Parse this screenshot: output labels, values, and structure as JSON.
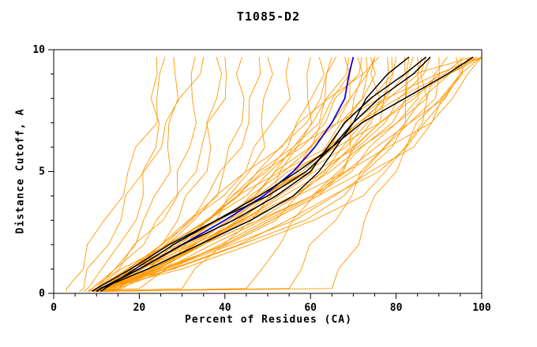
{
  "chart_data": {
    "type": "line",
    "title": "T1085-D2",
    "xlabel": "Percent of Residues (CA)",
    "ylabel": "Distance Cutoff, A",
    "xlim": [
      0,
      100
    ],
    "ylim": [
      0,
      10
    ],
    "x_major_ticks": [
      0,
      20,
      40,
      60,
      80,
      100
    ],
    "x_minor_step": 5,
    "y_major_ticks": [
      0,
      5,
      10
    ],
    "y_minor_step": 1,
    "grid": false,
    "legend": "none",
    "colors": {
      "ensemble": "#ff9800",
      "reference": "#000000",
      "highlight": "#1500cd",
      "frame": "#000000",
      "background": "#ffffff"
    },
    "y_levels": [
      0.08,
      0.2,
      1,
      2,
      3,
      4,
      5,
      6,
      7,
      8,
      9,
      9.7
    ],
    "series_groups": [
      {
        "name": "ensemble-model",
        "color": "#ff9800",
        "width": 0.9,
        "curves": [
          [
            7,
            8,
            12,
            16,
            18,
            21,
            22,
            23,
            24,
            24,
            24,
            24
          ],
          [
            9,
            10,
            14,
            18,
            22,
            24,
            26,
            27,
            28,
            28,
            28,
            28
          ],
          [
            8,
            9,
            15,
            20,
            25,
            28,
            30,
            32,
            32,
            33,
            33,
            33
          ],
          [
            10,
            12,
            18,
            24,
            29,
            32,
            35,
            36,
            37,
            38,
            38,
            38
          ],
          [
            9,
            10,
            18,
            26,
            32,
            37,
            40,
            42,
            43,
            44,
            44,
            44
          ],
          [
            10,
            13,
            22,
            30,
            37,
            42,
            46,
            48,
            49,
            50,
            50,
            50
          ],
          [
            9,
            11,
            18,
            26,
            33,
            39,
            44,
            48,
            51,
            54,
            55,
            55
          ],
          [
            11,
            14,
            19,
            26,
            31,
            36,
            40,
            43,
            45,
            47,
            48,
            48
          ],
          [
            8,
            9,
            14,
            20,
            25,
            29,
            32,
            35,
            37,
            39,
            40,
            40
          ],
          [
            10,
            12,
            23,
            34,
            43,
            50,
            54,
            57,
            59,
            60,
            60,
            60
          ],
          [
            9,
            10,
            18,
            28,
            36,
            43,
            49,
            54,
            58,
            60,
            62,
            62
          ],
          [
            10,
            12,
            21,
            30,
            39,
            46,
            52,
            57,
            61,
            63,
            65,
            65
          ],
          [
            9,
            11,
            20,
            31,
            40,
            47,
            54,
            59,
            63,
            66,
            68,
            68
          ],
          [
            11,
            13,
            22,
            33,
            42,
            49,
            56,
            61,
            65,
            68,
            70,
            70
          ],
          [
            8,
            10,
            18,
            27,
            35,
            43,
            50,
            57,
            63,
            67,
            71,
            72
          ],
          [
            11,
            14,
            24,
            34,
            44,
            52,
            59,
            64,
            68,
            71,
            73,
            73
          ],
          [
            10,
            12,
            20,
            29,
            38,
            46,
            53,
            60,
            65,
            70,
            74,
            75
          ],
          [
            9,
            11,
            21,
            33,
            43,
            51,
            59,
            64,
            69,
            72,
            74,
            74
          ],
          [
            12,
            15,
            21,
            29,
            36,
            42,
            48,
            54,
            58,
            62,
            65,
            66
          ],
          [
            10,
            13,
            26,
            40,
            51,
            58,
            64,
            68,
            70,
            71,
            71,
            71
          ],
          [
            8,
            10,
            25,
            40,
            52,
            61,
            67,
            71,
            74,
            75,
            75,
            75
          ],
          [
            10,
            12,
            19,
            27,
            35,
            42,
            49,
            55,
            60,
            65,
            68,
            69
          ],
          [
            9,
            11,
            22,
            34,
            45,
            54,
            62,
            68,
            73,
            76,
            78,
            78
          ],
          [
            10,
            13,
            24,
            36,
            47,
            56,
            64,
            70,
            75,
            78,
            80,
            80
          ],
          [
            9,
            12,
            21,
            31,
            41,
            49,
            58,
            65,
            71,
            77,
            81,
            82
          ],
          [
            11,
            14,
            25,
            38,
            49,
            59,
            67,
            73,
            78,
            82,
            84,
            84
          ],
          [
            8,
            10,
            19,
            30,
            41,
            50,
            59,
            67,
            74,
            79,
            84,
            85
          ],
          [
            12,
            15,
            26,
            39,
            51,
            60,
            69,
            75,
            80,
            84,
            86,
            86
          ],
          [
            9,
            12,
            21,
            33,
            43,
            53,
            62,
            70,
            77,
            82,
            86,
            88
          ],
          [
            10,
            13,
            25,
            39,
            52,
            62,
            71,
            78,
            84,
            88,
            90,
            90
          ],
          [
            9,
            11,
            28,
            45,
            58,
            67,
            74,
            79,
            81,
            83,
            83,
            83
          ],
          [
            13,
            16,
            24,
            33,
            42,
            50,
            57,
            64,
            69,
            74,
            78,
            79
          ],
          [
            10,
            12,
            29,
            47,
            61,
            71,
            78,
            83,
            85,
            87,
            87,
            87
          ],
          [
            11,
            14,
            19,
            26,
            32,
            39,
            45,
            52,
            58,
            65,
            71,
            76
          ],
          [
            9,
            12,
            22,
            34,
            45,
            55,
            64,
            73,
            80,
            86,
            90,
            92
          ],
          [
            11,
            14,
            27,
            42,
            55,
            66,
            75,
            83,
            88,
            92,
            95,
            95
          ],
          [
            8,
            11,
            22,
            34,
            46,
            57,
            67,
            76,
            84,
            90,
            95,
            97
          ],
          [
            10,
            13,
            20,
            29,
            38,
            47,
            56,
            66,
            75,
            84,
            93,
            99
          ],
          [
            12,
            15,
            28,
            42,
            55,
            66,
            75,
            82,
            88,
            91,
            94,
            94
          ],
          [
            9,
            12,
            23,
            36,
            48,
            59,
            69,
            79,
            87,
            93,
            98,
            100
          ],
          [
            8,
            10,
            17,
            26,
            35,
            44,
            53,
            63,
            72,
            81,
            90,
            96
          ],
          [
            9,
            20,
            25,
            31,
            37,
            44,
            50,
            58,
            66,
            75,
            85,
            98
          ],
          [
            10,
            30,
            34,
            40,
            45,
            51,
            57,
            64,
            71,
            79,
            89,
            100
          ],
          [
            11,
            45,
            48,
            52,
            57,
            61,
            66,
            71,
            77,
            83,
            90,
            99
          ],
          [
            10,
            55,
            58,
            61,
            65,
            69,
            73,
            77,
            81,
            87,
            93,
            100
          ],
          [
            9,
            65,
            67,
            70,
            73,
            76,
            79,
            82,
            86,
            90,
            94,
            100
          ],
          [
            3,
            3,
            6,
            9,
            12,
            15,
            18,
            20,
            23,
            24,
            26,
            26
          ],
          [
            6,
            7,
            9,
            12,
            15,
            18,
            21,
            24,
            27,
            30,
            33,
            35
          ]
        ]
      },
      {
        "name": "highlight-model",
        "color": "#1500cd",
        "width": 1.8,
        "curves": [
          [
            10,
            11,
            20,
            30,
            40,
            49,
            56,
            61,
            65,
            68,
            69,
            70
          ]
        ]
      },
      {
        "name": "reference-model",
        "color": "#000000",
        "width": 1.5,
        "curves": [
          [
            10,
            11,
            20,
            30,
            42,
            52,
            60,
            64,
            68,
            74,
            82,
            87
          ],
          [
            11,
            12,
            19,
            28,
            38,
            48,
            57,
            65,
            72,
            82,
            92,
            98
          ],
          [
            10,
            11,
            22,
            34,
            46,
            56,
            62,
            66,
            70,
            76,
            84,
            88
          ],
          [
            9,
            10,
            18,
            27,
            38,
            50,
            59,
            65,
            70,
            73,
            78,
            83
          ]
        ]
      }
    ]
  }
}
